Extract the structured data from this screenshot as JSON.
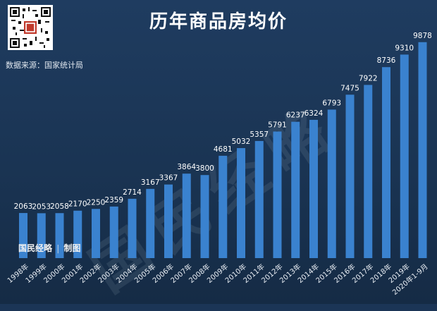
{
  "title": "历年商品房均价",
  "source": "数据来源：国家统计局",
  "credit": {
    "brand": "国民经略",
    "sep": "|",
    "role": "制图"
  },
  "watermark": "国民经略",
  "colors": {
    "bar": "#3a82cf",
    "background": "#1b3556",
    "text": "#ffffff"
  },
  "chart_data": {
    "type": "bar",
    "title": "历年商品房均价",
    "xlabel": "",
    "ylabel": "",
    "categories": [
      "1998年",
      "1999年",
      "2000年",
      "2001年",
      "2002年",
      "2003年",
      "2004年",
      "2005年",
      "2006年",
      "2007年",
      "2008年",
      "2009年",
      "2010年",
      "2011年",
      "2012年",
      "2013年",
      "2014年",
      "2015年",
      "2016年",
      "2017年",
      "2018年",
      "2019年",
      "2020年1-9月"
    ],
    "values": [
      2063,
      2053,
      2058,
      2170,
      2250,
      2359,
      2714,
      3167,
      3367,
      3864,
      3800,
      4681,
      5032,
      5357,
      5791,
      6237,
      6324,
      6793,
      7475,
      7922,
      8736,
      9310,
      9878
    ],
    "ylim": [
      0,
      10000
    ],
    "data_labels": true,
    "grid": false,
    "legend": "none"
  }
}
